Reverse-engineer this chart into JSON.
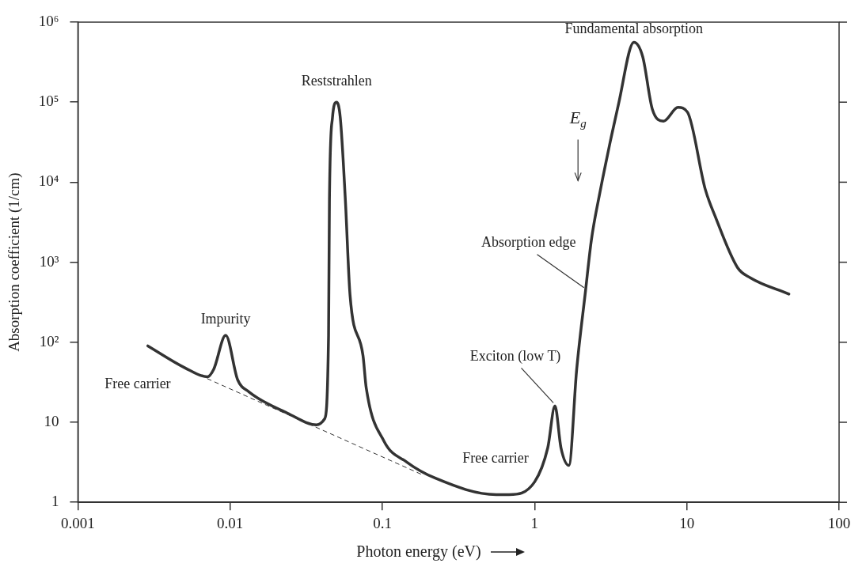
{
  "chart_data": {
    "type": "line",
    "xlabel": "Photon energy (eV)",
    "ylabel": "Absorption coefficient (1/cm)",
    "log": "xy",
    "xlim": [
      0.001,
      100
    ],
    "ylim": [
      1,
      1000000
    ],
    "xticks": [
      0.001,
      0.01,
      0.1,
      1,
      10,
      100
    ],
    "yticks": [
      {
        "value": 1,
        "label": "1"
      },
      {
        "value": 10,
        "label": "10"
      },
      {
        "value": 100,
        "label": "10²"
      },
      {
        "value": 1000,
        "label": "10³"
      },
      {
        "value": 10000,
        "label": "10⁴"
      },
      {
        "value": 100000,
        "label": "10⁵"
      },
      {
        "value": 1000000,
        "label": "10⁶"
      }
    ],
    "grid": false,
    "legend": false,
    "marker": "none",
    "series": [
      {
        "color": "#333333",
        "line_style": "solid",
        "x": [
          0.00288,
          0.00504,
          0.00708,
          0.0078,
          0.00935,
          0.0112,
          0.0133,
          0.0238,
          0.0369,
          0.0417,
          0.0443,
          0.0449,
          0.047,
          0.05,
          0.0529,
          0.0571,
          0.0613,
          0.0746,
          0.0783,
          0.1025,
          0.144,
          0.223,
          0.56,
          0.68,
          1.0,
          1.22,
          1.36,
          1.49,
          1.68,
          1.89,
          2.16,
          2.36,
          2.66,
          3.56,
          4.49,
          5.13,
          5.93,
          7.03,
          8.75,
          10.1,
          13.2,
          15.3,
          21.5,
          26.1,
          46.8
        ],
        "values": [
          90,
          48,
          37,
          46,
          122,
          34,
          24,
          13,
          9.3,
          11,
          122,
          6100,
          64000,
          100000,
          64000,
          6100,
          390,
          68,
          27,
          5.8,
          3.2,
          2.0,
          1.25,
          1.25,
          1.8,
          4.8,
          16,
          4.8,
          2.9,
          46,
          440,
          1900,
          6800,
          95000,
          560000,
          370000,
          82000,
          58000,
          86000,
          75000,
          8200,
          3800,
          860,
          640,
          400
        ]
      },
      {
        "color": "#333333",
        "line_style": "dashed",
        "x": [
          0.0071,
          0.184
        ],
        "values": [
          35,
          2.2
        ]
      }
    ],
    "annotations": [
      {
        "text": "Free carrier",
        "x": 0.00708,
        "y": 37
      },
      {
        "text": "Impurity",
        "x": 0.00935,
        "y": 122
      },
      {
        "text": "Reststrahlen",
        "x": 0.05,
        "y": 100000
      },
      {
        "text": "Fundamental absorption",
        "x": 4.49,
        "y": 560000
      },
      {
        "text": "Free carrier",
        "x": 0.223,
        "y": 2.0
      },
      {
        "text": "Exciton (low T)",
        "x": 1.36,
        "y": 16
      },
      {
        "text": "Absorption edge",
        "x": 2.16,
        "y": 440
      },
      "E$_{g}$"
    ]
  }
}
